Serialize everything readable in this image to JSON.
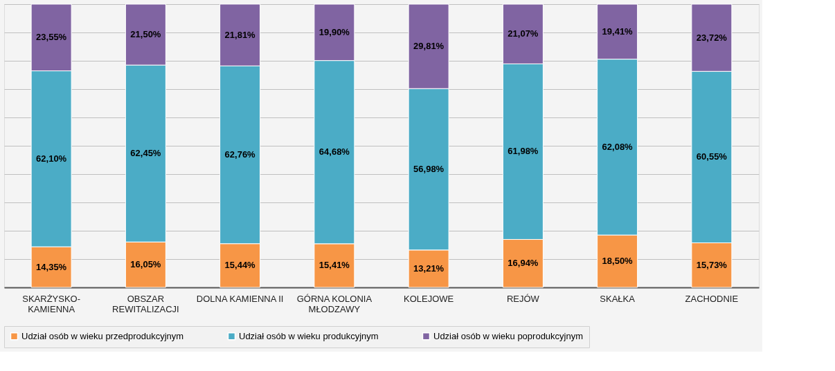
{
  "chart_data": {
    "type": "bar",
    "stacked": true,
    "legend": "bottom",
    "grid": "y",
    "tick_labels": "x",
    "categories": [
      "SKARŻYSKO-KAMIENNA",
      "OBSZAR REWITALIZACJI",
      "DOLNA KAMIENNA II",
      "GÓRNA KOLONIA MŁODZAWY",
      "KOLEJOWE",
      "REJÓW",
      "SKAŁKA",
      "ZACHODNIE"
    ],
    "ylim": [
      0,
      100
    ],
    "yticks": [
      {
        "value": 0,
        "label": null
      },
      {
        "value": 10,
        "label": null
      },
      {
        "value": 20,
        "label": null
      },
      {
        "value": 30,
        "label": null
      },
      {
        "value": 40,
        "label": null
      },
      {
        "value": 50,
        "label": null
      },
      {
        "value": 60,
        "label": null
      },
      {
        "value": 70,
        "label": null
      },
      {
        "value": 80,
        "label": null
      },
      {
        "value": 90,
        "label": null
      },
      {
        "value": 100,
        "label": null
      }
    ],
    "series": [
      {
        "name": "Udział osób w wieku przedprodukcyjnym",
        "color": "#f79646",
        "values": [
          14.35,
          16.05,
          15.44,
          15.41,
          13.21,
          16.94,
          18.5,
          15.73
        ],
        "value_labels": [
          "14,35%",
          "16,05%",
          "15,44%",
          "15,41%",
          "13,21%",
          "16,94%",
          "18,50%",
          "15,73%"
        ]
      },
      {
        "name": "Udział osób w wieku produkcyjnym",
        "color": "#4bacc6",
        "values": [
          62.1,
          62.45,
          62.76,
          64.68,
          56.98,
          61.98,
          62.08,
          60.55
        ],
        "value_labels": [
          "62,10%",
          "62,45%",
          "62,76%",
          "64,68%",
          "56,98%",
          "61,98%",
          "62,08%",
          "60,55%"
        ]
      },
      {
        "name": "Udział osób w wieku poprodukcyjnym",
        "color": "#8064a2",
        "values": [
          23.55,
          21.5,
          21.81,
          19.9,
          29.81,
          21.07,
          19.41,
          23.72
        ],
        "value_labels": [
          "23,55%",
          "21,50%",
          "21,81%",
          "19,90%",
          "29,81%",
          "21,07%",
          "19,41%",
          "23,72%"
        ]
      }
    ]
  }
}
